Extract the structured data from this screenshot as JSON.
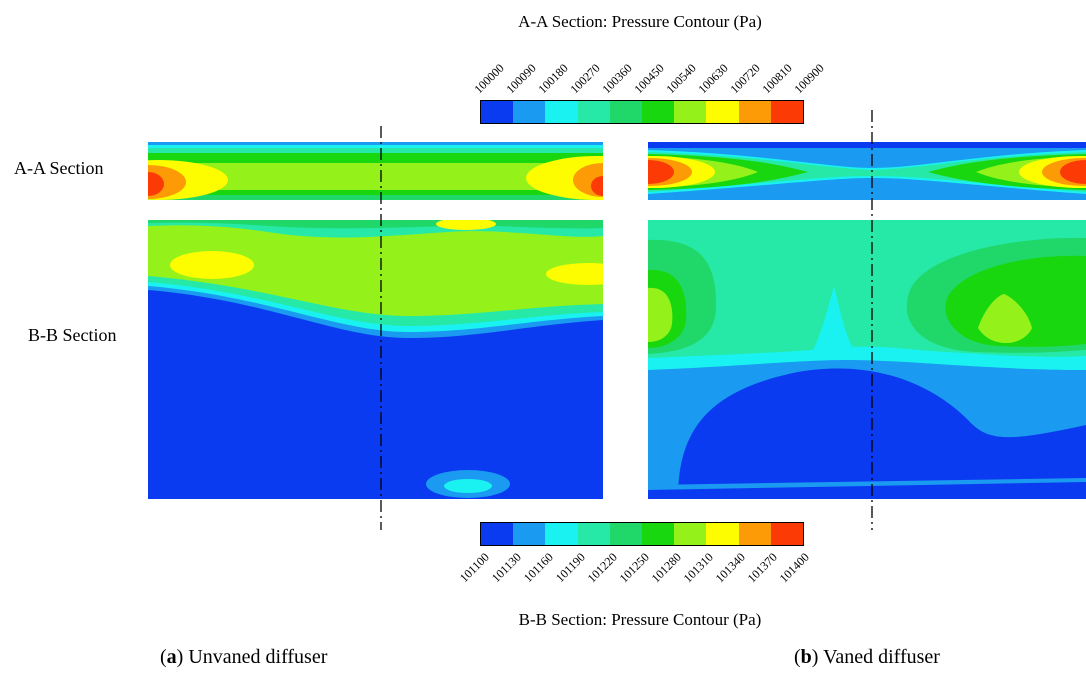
{
  "titles": {
    "aa": "A-A Section: Pressure Contour (Pa)",
    "bb": "B-B Section: Pressure Contour (Pa)"
  },
  "row_labels": {
    "aa": "A-A Section",
    "bb": "B-B Section"
  },
  "captions": {
    "a_letter": "a",
    "a_text": "Unvaned diffuser",
    "b_letter": "b",
    "b_text": "Vaned diffuser"
  },
  "legends": {
    "aa": {
      "ticks": [
        "100000",
        "100090",
        "100180",
        "100270",
        "100360",
        "100450",
        "100540",
        "100630",
        "100720",
        "100810",
        "100900"
      ],
      "colors": [
        "#0a3bf0",
        "#1a9af0",
        "#19f2f0",
        "#26e9a8",
        "#20d86a",
        "#19d70f",
        "#94f21a",
        "#fdfd00",
        "#fc9b06",
        "#fb3a06"
      ]
    },
    "bb": {
      "ticks": [
        "101100",
        "101130",
        "101160",
        "101190",
        "101220",
        "101250",
        "101280",
        "101310",
        "101340",
        "101370",
        "101400"
      ],
      "colors": [
        "#0a3bf0",
        "#1a9af0",
        "#19f2f0",
        "#26e9a8",
        "#20d86a",
        "#19d70f",
        "#94f21a",
        "#fdfd00",
        "#fc9b06",
        "#fb3a06"
      ]
    }
  }
}
